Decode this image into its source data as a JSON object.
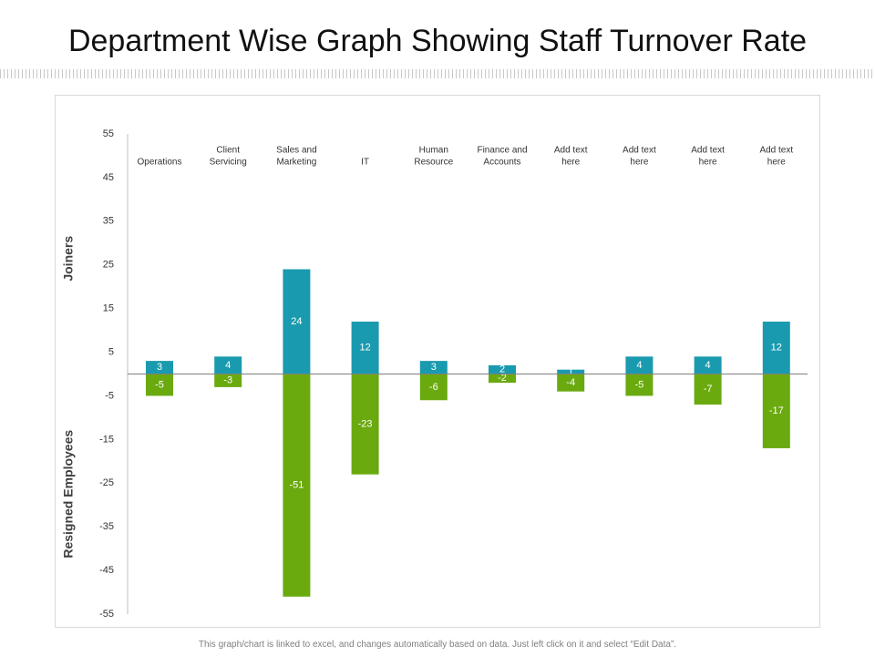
{
  "title": "Department Wise Graph Showing Staff Turnover Rate",
  "footnote": "This graph/chart is linked to excel, and changes automatically based on data. Just left click on it and select “Edit Data”.",
  "colors": {
    "joiners": "#1a9aae",
    "resigned": "#6aaa0f",
    "axis": "#808080",
    "text": "#333333"
  },
  "chart_data": {
    "type": "bar",
    "title": "Department Wise Graph Showing Staff Turnover Rate",
    "categories": [
      [
        "Operations"
      ],
      [
        "Client",
        "Servicing"
      ],
      [
        "Sales and",
        "Marketing"
      ],
      [
        "IT"
      ],
      [
        "Human",
        "Resource"
      ],
      [
        "Finance and",
        "Accounts"
      ],
      [
        "Add text",
        "here"
      ],
      [
        "Add text",
        "here"
      ],
      [
        "Add text",
        "here"
      ],
      [
        "Add text",
        "here"
      ]
    ],
    "series": [
      {
        "name": "Joiners",
        "values": [
          3,
          4,
          24,
          12,
          3,
          2,
          1,
          4,
          4,
          12
        ]
      },
      {
        "name": "Resigned Employees",
        "values": [
          -5,
          -3,
          -51,
          -23,
          -6,
          -2,
          -4,
          -5,
          -7,
          -17
        ]
      }
    ],
    "ylim": [
      -55,
      55
    ],
    "yticks": [
      55,
      45,
      35,
      25,
      15,
      5,
      -5,
      -15,
      -25,
      -35,
      -45,
      -55
    ],
    "ylabel_top": "Joiners",
    "ylabel_bottom": "Resigned Employees",
    "stacked": true
  }
}
